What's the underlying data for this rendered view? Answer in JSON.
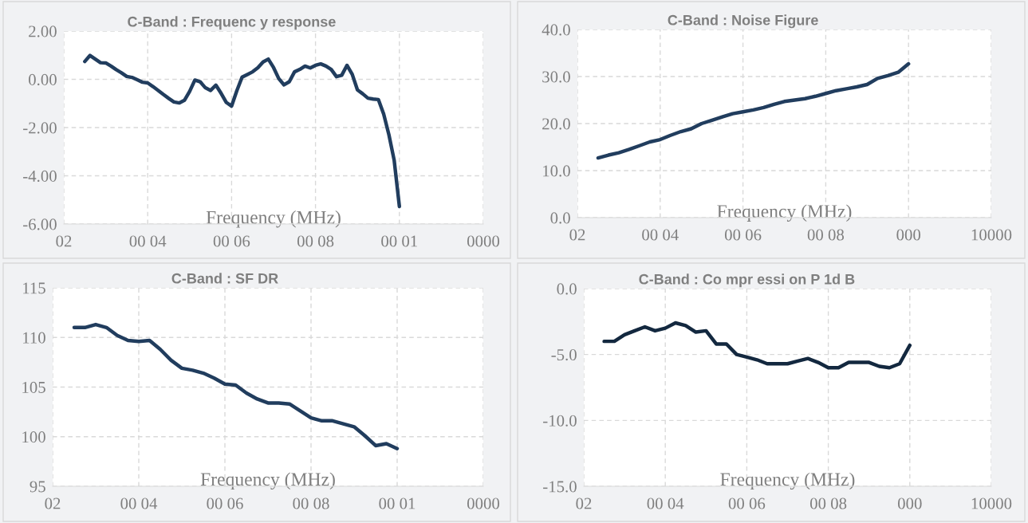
{
  "chart_data": [
    {
      "type": "line",
      "title": "C-Band : Frequenc y response",
      "xlabel": "Frequency (MHz)",
      "grid": true,
      "line_style": "solid",
      "categories": [
        "02",
        null,
        null,
        null,
        null,
        null,
        null,
        null,
        null,
        null,
        null,
        null,
        null,
        null,
        null,
        null,
        "00 04",
        null,
        null,
        null,
        null,
        null,
        null,
        null,
        null,
        null,
        null,
        null,
        null,
        null,
        null,
        null,
        "00 06",
        null,
        null,
        null,
        null,
        null,
        null,
        null,
        null,
        null,
        null,
        null,
        null,
        null,
        null,
        null,
        "00 08",
        null,
        null,
        null,
        null,
        null,
        null,
        null,
        null,
        null,
        null,
        null,
        null,
        null,
        null,
        null,
        "00 01",
        null,
        null,
        null,
        null,
        null,
        null,
        null,
        null,
        null,
        null,
        null,
        null,
        null,
        null,
        null,
        "0000"
      ],
      "ylim": [
        -6,
        2
      ],
      "yticks": [
        {
          "value": -6,
          "label": "-6.00"
        },
        {
          "value": -4,
          "label": "-4.00"
        },
        {
          "value": -2,
          "label": "-2.00"
        },
        {
          "value": 0,
          "label": "0.00"
        },
        {
          "value": 2,
          "label": "2.00"
        }
      ],
      "series": [
        {
          "color": "#213d5e",
          "values": [
            null,
            null,
            null,
            null,
            0.74,
            0.99,
            0.84,
            0.69,
            0.68,
            0.55,
            0.4,
            0.27,
            0.12,
            0.08,
            -0.02,
            -0.12,
            -0.15,
            -0.3,
            -0.46,
            -0.63,
            -0.79,
            -0.94,
            -0.98,
            -0.87,
            -0.5,
            -0.03,
            -0.1,
            -0.35,
            -0.46,
            -0.24,
            -0.58,
            -0.96,
            -1.11,
            -0.47,
            0.09,
            0.2,
            0.31,
            0.48,
            0.72,
            0.84,
            0.49,
            0.03,
            -0.23,
            -0.1,
            0.31,
            0.41,
            0.55,
            0.47,
            0.58,
            0.64,
            0.55,
            0.41,
            0.11,
            0.17,
            0.58,
            0.21,
            -0.44,
            -0.6,
            -0.78,
            -0.82,
            -0.84,
            -1.44,
            -2.3,
            -3.35,
            -5.27,
            null,
            null,
            null,
            null,
            null,
            null,
            null,
            null,
            null,
            null,
            null,
            null,
            null,
            null,
            null,
            null
          ]
        }
      ]
    },
    {
      "type": "line",
      "title": "C-Band : Noise Figure",
      "xlabel": "Frequency (MHz)",
      "grid": true,
      "line_style": "solid",
      "categories": [
        "02",
        null,
        null,
        null,
        null,
        null,
        null,
        null,
        "00 04",
        null,
        null,
        null,
        null,
        null,
        null,
        null,
        "00 06",
        null,
        null,
        null,
        null,
        null,
        null,
        null,
        "00 08",
        null,
        null,
        null,
        null,
        null,
        null,
        null,
        "000",
        null,
        null,
        null,
        null,
        null,
        null,
        null,
        "10000"
      ],
      "ylim": [
        0,
        40
      ],
      "yticks": [
        {
          "value": 0,
          "label": "0.0"
        },
        {
          "value": 10,
          "label": "10.0"
        },
        {
          "value": 20,
          "label": "20.0"
        },
        {
          "value": 30,
          "label": "30.0"
        },
        {
          "value": 40,
          "label": "40.0"
        }
      ],
      "series": [
        {
          "color": "#213d5e",
          "values": [
            null,
            null,
            12.7,
            13.3,
            13.8,
            14.5,
            15.3,
            16.1,
            16.6,
            17.5,
            18.3,
            18.9,
            20.0,
            20.7,
            21.4,
            22.1,
            22.5,
            22.9,
            23.4,
            24.1,
            24.7,
            25.0,
            25.3,
            25.8,
            26.4,
            27.0,
            27.4,
            27.8,
            28.3,
            29.6,
            30.2,
            30.9,
            32.7,
            null,
            null,
            null,
            null,
            null,
            null,
            null,
            null
          ]
        }
      ]
    },
    {
      "type": "line",
      "title": "C-Band : SF DR",
      "xlabel": "Frequency (MHz)",
      "grid": true,
      "line_style": "solid",
      "categories": [
        "02",
        null,
        null,
        null,
        null,
        null,
        null,
        null,
        "00 04",
        null,
        null,
        null,
        null,
        null,
        null,
        null,
        "00 06",
        null,
        null,
        null,
        null,
        null,
        null,
        null,
        "00 08",
        null,
        null,
        null,
        null,
        null,
        null,
        null,
        "00 01",
        null,
        null,
        null,
        null,
        null,
        null,
        null,
        "0000"
      ],
      "ylim": [
        95,
        115
      ],
      "yticks": [
        95,
        100,
        105,
        110,
        115
      ],
      "series": [
        {
          "color": "#213d5e",
          "values": [
            null,
            null,
            111.0,
            111.0,
            111.3,
            111.0,
            110.2,
            109.7,
            109.6,
            109.7,
            108.8,
            107.7,
            106.9,
            106.7,
            106.4,
            105.9,
            105.3,
            105.2,
            104.4,
            103.8,
            103.4,
            103.4,
            103.3,
            102.6,
            101.9,
            101.6,
            101.6,
            101.3,
            101.0,
            100.1,
            99.1,
            99.3,
            98.8,
            null,
            null,
            null,
            null,
            null,
            null,
            null,
            null
          ]
        }
      ]
    },
    {
      "type": "line",
      "title": "C-Band : Co mpr essi on P 1d B",
      "xlabel": "Frequency (MHz)",
      "grid": true,
      "line_style": "solid",
      "categories": [
        "02",
        null,
        null,
        null,
        null,
        null,
        null,
        null,
        "00 04",
        null,
        null,
        null,
        null,
        null,
        null,
        null,
        "00 06",
        null,
        null,
        null,
        null,
        null,
        null,
        null,
        "00 08",
        null,
        null,
        null,
        null,
        null,
        null,
        null,
        "000",
        null,
        null,
        null,
        null,
        null,
        null,
        null,
        "10000"
      ],
      "ylim": [
        -15,
        0
      ],
      "yticks": [
        {
          "value": -15,
          "label": "-15.0"
        },
        {
          "value": -10,
          "label": "-10.0"
        },
        {
          "value": -5,
          "label": "-5.0"
        },
        {
          "value": 0,
          "label": "0.0"
        }
      ],
      "series": [
        {
          "color": "#13283f",
          "values": [
            null,
            null,
            -4.0,
            -4.0,
            -3.5,
            -3.2,
            -2.9,
            -3.2,
            -3.0,
            -2.6,
            -2.8,
            -3.3,
            -3.2,
            -4.2,
            -4.2,
            -5.0,
            -5.2,
            -5.4,
            -5.7,
            -5.7,
            -5.7,
            -5.5,
            -5.3,
            -5.6,
            -6.0,
            -6.0,
            -5.6,
            -5.6,
            -5.6,
            -5.9,
            -6.0,
            -5.7,
            -4.3,
            null,
            null,
            null,
            null,
            null,
            null,
            null,
            null
          ]
        }
      ]
    }
  ]
}
